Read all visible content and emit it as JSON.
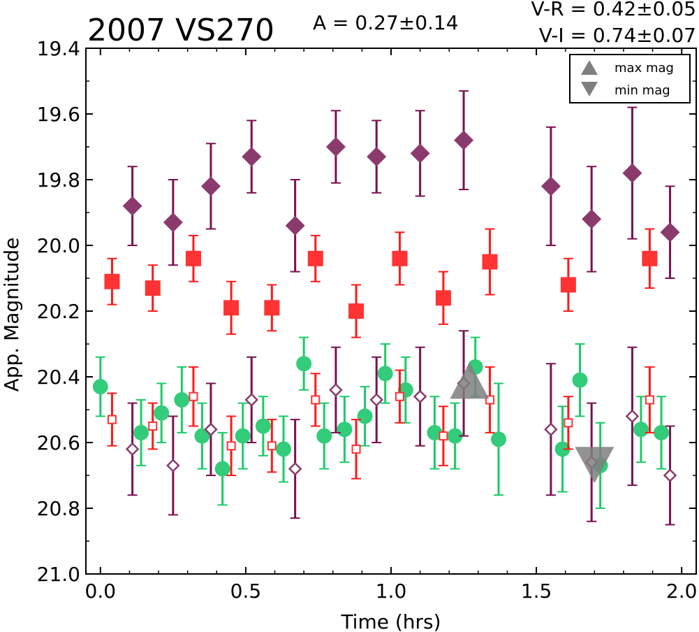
{
  "chart_data": {
    "type": "scatter",
    "title": "2007 VS270",
    "amplitude_label": "A  = 0.27±0.14",
    "color_labels": [
      "V-R = 0.42±0.05",
      "V-I  = 0.74±0.07"
    ],
    "xlabel": "Time (hrs)",
    "ylabel": "App. Magnitude",
    "xlim": [
      -0.05,
      2.05
    ],
    "ylim": [
      21.0,
      19.4
    ],
    "y_inverted": true,
    "x_ticks": [
      "0.0",
      "0.5",
      "1.0",
      "1.5",
      "2.0"
    ],
    "x_tick_values": [
      0.0,
      0.5,
      1.0,
      1.5,
      2.0
    ],
    "y_ticks": [
      "19.4",
      "19.6",
      "19.8",
      "20.0",
      "20.2",
      "20.4",
      "20.6",
      "20.8",
      "21.0"
    ],
    "y_tick_values": [
      19.4,
      19.6,
      19.8,
      20.0,
      20.2,
      20.4,
      20.6,
      20.8,
      21.0
    ],
    "legend": {
      "placement": "top-right",
      "entries": [
        {
          "marker": "triangle-up",
          "label": "max mag",
          "color": "#7f7f7f"
        },
        {
          "marker": "triangle-down",
          "label": "min mag",
          "color": "#7f7f7f"
        }
      ]
    },
    "series": [
      {
        "marker": "diamond-filled",
        "color": "#8b3a6e",
        "err_color": "#7a1150",
        "x": [
          0.11,
          0.25,
          0.38,
          0.52,
          0.67,
          0.81,
          0.95,
          1.1,
          1.25,
          1.55,
          1.69,
          1.83,
          1.96
        ],
        "y": [
          19.88,
          19.93,
          19.82,
          19.73,
          19.94,
          19.7,
          19.73,
          19.72,
          19.68,
          19.82,
          19.92,
          19.78,
          19.96
        ],
        "err": [
          0.12,
          0.13,
          0.13,
          0.11,
          0.14,
          0.11,
          0.11,
          0.13,
          0.15,
          0.18,
          0.16,
          0.2,
          0.14
        ]
      },
      {
        "marker": "square-filled",
        "color": "#ff3333",
        "err_color": "#ff1a1a",
        "x": [
          0.04,
          0.18,
          0.32,
          0.45,
          0.59,
          0.74,
          0.88,
          1.03,
          1.18,
          1.34,
          1.61,
          1.89
        ],
        "y": [
          20.11,
          20.13,
          20.04,
          20.19,
          20.19,
          20.04,
          20.2,
          20.04,
          20.16,
          20.05,
          20.12,
          20.04
        ],
        "err": [
          0.07,
          0.07,
          0.07,
          0.08,
          0.07,
          0.07,
          0.08,
          0.08,
          0.08,
          0.1,
          0.08,
          0.09
        ]
      },
      {
        "marker": "circle-filled",
        "color": "#33cc7a",
        "err_color": "#1acc66",
        "x": [
          0.0,
          0.14,
          0.21,
          0.28,
          0.35,
          0.42,
          0.49,
          0.56,
          0.63,
          0.7,
          0.77,
          0.84,
          0.91,
          0.98,
          1.05,
          1.15,
          1.22,
          1.29,
          1.37,
          1.59,
          1.65,
          1.72,
          1.86,
          1.93
        ],
        "y": [
          20.43,
          20.57,
          20.51,
          20.47,
          20.58,
          20.68,
          20.58,
          20.55,
          20.62,
          20.36,
          20.58,
          20.56,
          20.52,
          20.39,
          20.44,
          20.57,
          20.58,
          20.37,
          20.59,
          20.62,
          20.41,
          20.67,
          20.56,
          20.57
        ],
        "err": [
          0.09,
          0.1,
          0.09,
          0.1,
          0.1,
          0.11,
          0.1,
          0.09,
          0.1,
          0.08,
          0.1,
          0.1,
          0.09,
          0.09,
          0.1,
          0.11,
          0.1,
          0.09,
          0.17,
          0.13,
          0.11,
          0.13,
          0.1,
          0.11
        ]
      },
      {
        "marker": "square-open",
        "color": "#ff3333",
        "err_color": "#ff1a1a",
        "x": [
          0.04,
          0.18,
          0.32,
          0.45,
          0.59,
          0.74,
          0.88,
          1.03,
          1.18,
          1.34,
          1.61,
          1.89
        ],
        "y": [
          20.53,
          20.55,
          20.46,
          20.61,
          20.61,
          20.47,
          20.62,
          20.46,
          20.58,
          20.47,
          20.54,
          20.47
        ],
        "err": [
          0.08,
          0.07,
          0.09,
          0.09,
          0.08,
          0.08,
          0.09,
          0.08,
          0.09,
          0.1,
          0.08,
          0.1
        ]
      },
      {
        "marker": "diamond-open",
        "color": "#8b3a6e",
        "err_color": "#7a1150",
        "x": [
          0.11,
          0.25,
          0.38,
          0.52,
          0.67,
          0.81,
          0.95,
          1.1,
          1.25,
          1.55,
          1.69,
          1.83,
          1.96
        ],
        "y": [
          20.62,
          20.67,
          20.56,
          20.47,
          20.68,
          20.44,
          20.47,
          20.46,
          20.42,
          20.56,
          20.66,
          20.52,
          20.7
        ],
        "err": [
          0.14,
          0.15,
          0.14,
          0.13,
          0.15,
          0.13,
          0.13,
          0.15,
          0.16,
          0.2,
          0.18,
          0.21,
          0.15
        ]
      }
    ],
    "extrema": [
      {
        "type": "max mag",
        "x": 1.27,
        "y": 20.42
      },
      {
        "type": "min mag",
        "x": 1.7,
        "y": 20.66
      }
    ]
  }
}
